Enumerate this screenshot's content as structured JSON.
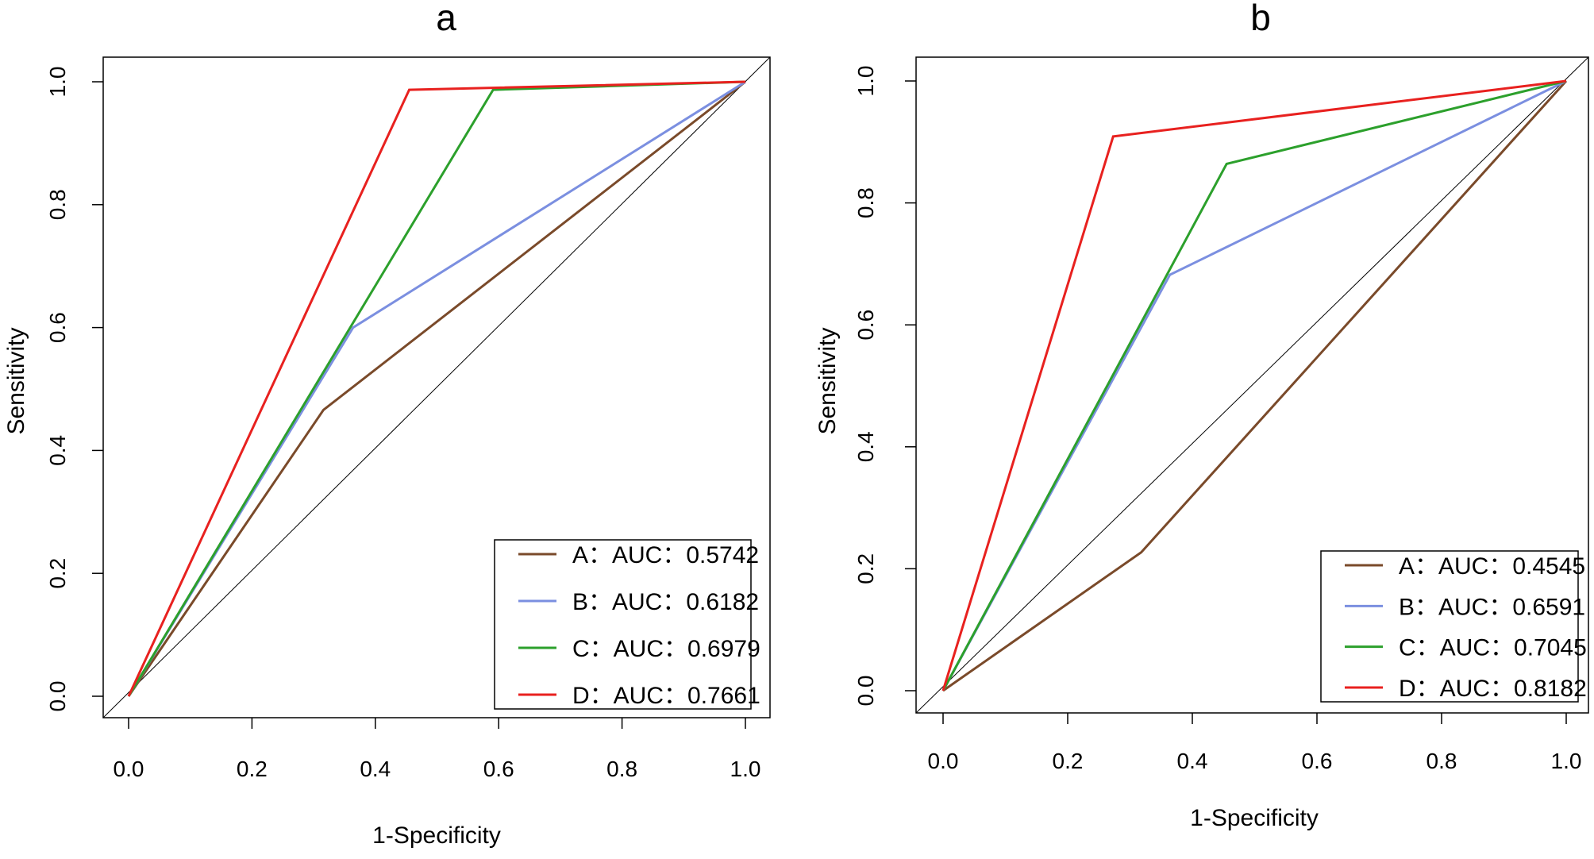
{
  "chart_data": [
    {
      "type": "line",
      "title": "a",
      "xlabel": "1-Specificity",
      "ylabel": "Sensitivity",
      "xlim": [
        0,
        1
      ],
      "ylim": [
        0,
        1
      ],
      "xticks": [
        "0.0",
        "0.2",
        "0.4",
        "0.6",
        "0.8",
        "1.0"
      ],
      "yticks": [
        "0.0",
        "0.2",
        "0.4",
        "0.6",
        "0.8",
        "1.0"
      ],
      "legend_position": "bottom-right",
      "series": [
        {
          "name": "A：AUC：0.5742",
          "color": "#7a4a2a",
          "x": [
            0,
            0.316,
            1
          ],
          "y": [
            0,
            0.466,
            1
          ]
        },
        {
          "name": "B：AUC：0.6182",
          "color": "#7b8fe0",
          "x": [
            0,
            0.364,
            1
          ],
          "y": [
            0,
            0.6,
            1
          ]
        },
        {
          "name": "C：AUC：0.6979",
          "color": "#2ca02c",
          "x": [
            0,
            0.591,
            1
          ],
          "y": [
            0,
            0.987,
            1
          ]
        },
        {
          "name": "D：AUC：0.7661",
          "color": "#e8211f",
          "x": [
            0,
            0.455,
            1
          ],
          "y": [
            0,
            0.987,
            1
          ]
        }
      ]
    },
    {
      "type": "line",
      "title": "b",
      "xlabel": "1-Specificity",
      "ylabel": "Sensitivity",
      "xlim": [
        0,
        1
      ],
      "ylim": [
        0,
        1
      ],
      "xticks": [
        "0.0",
        "0.2",
        "0.4",
        "0.6",
        "0.8",
        "1.0"
      ],
      "yticks": [
        "0.0",
        "0.2",
        "0.4",
        "0.6",
        "0.8",
        "1.0"
      ],
      "legend_position": "bottom-right",
      "series": [
        {
          "name": "A：AUC：0.4545",
          "color": "#7a4a2a",
          "x": [
            0,
            0.318,
            1
          ],
          "y": [
            0,
            0.227,
            1
          ]
        },
        {
          "name": "B：AUC：0.6591",
          "color": "#7b8fe0",
          "x": [
            0,
            0.364,
            1
          ],
          "y": [
            0,
            0.682,
            1
          ]
        },
        {
          "name": "C：AUC：0.7045",
          "color": "#2ca02c",
          "x": [
            0,
            0.455,
            1
          ],
          "y": [
            0,
            0.864,
            1
          ]
        },
        {
          "name": "D：AUC：0.8182",
          "color": "#e8211f",
          "x": [
            0,
            0.273,
            1
          ],
          "y": [
            0,
            0.909,
            1
          ]
        }
      ]
    }
  ]
}
